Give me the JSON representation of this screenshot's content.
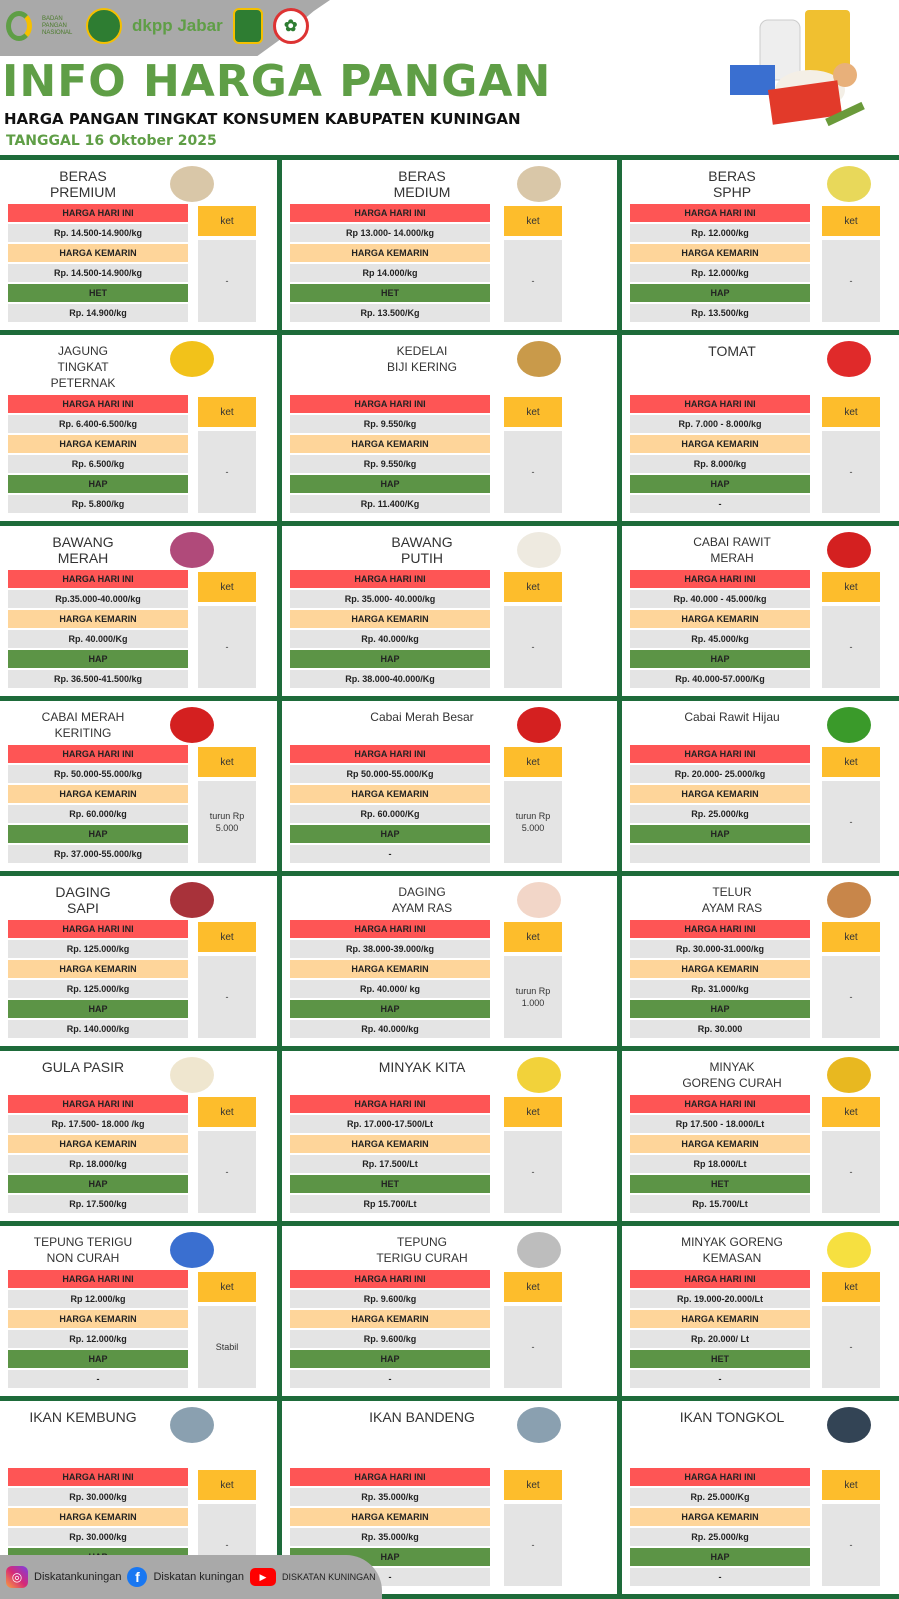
{
  "header": {
    "logos": [
      "BADAN PANGAN NASIONAL",
      "dkpp Jabar"
    ],
    "title": "INFO HARGA PANGAN",
    "subtitle": "HARGA PANGAN TINGKAT KONSUMEN  KABUPATEN KUNINGAN",
    "date": "TANGGAL 16 Oktober 2025"
  },
  "labels": {
    "today": "HARGA HARI INI",
    "yesterday": "HARGA KEMARIN",
    "ket": "ket"
  },
  "colors": {
    "today": "#fe5555",
    "yesterday": "#fed59a",
    "ref": "#5c9446",
    "ket": "#fdbd2c",
    "divider": "#1e6b3a",
    "title": "#5f9e46"
  },
  "cards": [
    {
      "name": "BERAS\nPREMIUM",
      "icon": "rice-sack-icon",
      "today": "Rp. 14.500-14.900/kg",
      "yesterday": "Rp. 14.500-14.900/kg",
      "ref_label": "HET",
      "ref": "Rp. 14.900/kg",
      "note": "-"
    },
    {
      "name": "BERAS\nMEDIUM",
      "icon": "rice-sack-icon",
      "today": "Rp 13.000- 14.000/kg",
      "yesterday": "Rp 14.000/kg",
      "ref_label": "HET",
      "ref": "Rp. 13.500/Kg",
      "note": "-"
    },
    {
      "name": "BERAS\nSPHP",
      "icon": "rice-bag-icon",
      "today": "Rp. 12.000/kg",
      "yesterday": "Rp. 12.000/kg",
      "ref_label": "HAP",
      "ref": "Rp. 13.500/kg",
      "note": "-"
    },
    {
      "name": "JAGUNG\nTINGKAT\nPETERNAK",
      "icon": "corn-icon",
      "today": "Rp. 6.400-6.500/kg",
      "yesterday": "Rp. 6.500/kg",
      "ref_label": "HAP",
      "ref": "Rp. 5.800/kg",
      "note": "-"
    },
    {
      "name": "KEDELAI\nBIJI KERING",
      "icon": "soybean-icon",
      "today": "Rp. 9.550/kg",
      "yesterday": "Rp. 9.550/kg",
      "ref_label": "HAP",
      "ref": "Rp. 11.400/Kg",
      "note": "-"
    },
    {
      "name": "TOMAT",
      "icon": "tomato-icon",
      "today": "Rp. 7.000 - 8.000/kg",
      "yesterday": "Rp. 8.000/kg",
      "ref_label": "HAP",
      "ref": "-",
      "note": "-"
    },
    {
      "name": "BAWANG\nMERAH",
      "icon": "shallot-icon",
      "today": "Rp.35.000-40.000/kg",
      "yesterday": "Rp. 40.000/Kg",
      "ref_label": "HAP",
      "ref": "Rp. 36.500-41.500/kg",
      "note": "-"
    },
    {
      "name": "BAWANG\nPUTIH",
      "icon": "garlic-icon",
      "today": "Rp. 35.000- 40.000/kg",
      "yesterday": "Rp. 40.000/kg",
      "ref_label": "HAP",
      "ref": "Rp. 38.000-40.000/Kg",
      "note": "-"
    },
    {
      "name": "CABAI RAWIT\nMERAH",
      "icon": "chili-icon",
      "today": "Rp. 40.000 - 45.000/kg",
      "yesterday": "Rp. 45.000/kg",
      "ref_label": "HAP",
      "ref": "Rp. 40.000-57.000/Kg",
      "note": "-"
    },
    {
      "name": "CABAI MERAH\nKERITING",
      "icon": "chili-icon",
      "today": "Rp.  50.000-55.000/kg",
      "yesterday": "Rp. 60.000/kg",
      "ref_label": "HAP",
      "ref": "Rp. 37.000-55.000/kg",
      "note": "turun Rp\n5.000"
    },
    {
      "name": "Cabai Merah Besar",
      "icon": "chili-icon",
      "today": "Rp  50.000-55.000/Kg",
      "yesterday": "Rp. 60.000/Kg",
      "ref_label": "HAP",
      "ref": "-",
      "note": "turun Rp\n5.000"
    },
    {
      "name": "Cabai Rawit Hijau",
      "icon": "green-chili-icon",
      "today": "Rp. 20.000- 25.000/kg",
      "yesterday": "Rp. 25.000/kg",
      "ref_label": "HAP",
      "note": "-"
    },
    {
      "name": "DAGING\nSAPI",
      "icon": "beef-icon",
      "today": "Rp. 125.000/kg",
      "yesterday": "Rp. 125.000/kg",
      "ref_label": "HAP",
      "ref": "Rp. 140.000/kg",
      "note": "-"
    },
    {
      "name": "DAGING\nAYAM RAS",
      "icon": "chicken-icon",
      "today": "Rp. 38.000-39.000/kg",
      "yesterday": "Rp. 40.000/ kg",
      "ref_label": "HAP",
      "ref": "Rp. 40.000/kg",
      "note": "turun Rp\n1.000"
    },
    {
      "name": "TELUR\nAYAM RAS",
      "icon": "egg-icon",
      "today": "Rp. 30.000-31.000/kg",
      "yesterday": "Rp. 31.000/kg",
      "ref_label": "HAP",
      "ref": "Rp. 30.000",
      "note": "-"
    },
    {
      "name": "GULA PASIR",
      "icon": "sugar-icon",
      "today": "Rp. 17.500- 18.000 /kg",
      "yesterday": "Rp. 18.000/kg",
      "ref_label": "HAP",
      "ref": "Rp. 17.500/kg",
      "note": "-"
    },
    {
      "name": "MINYAK KITA",
      "icon": "oil-bottle-icon",
      "today": "Rp. 17.000-17.500/Lt",
      "yesterday": "Rp. 17.500/Lt",
      "ref_label": "HET",
      "ref": "Rp 15.700/Lt",
      "note": "-"
    },
    {
      "name": "MINYAK\nGORENG CURAH",
      "icon": "oil-icon",
      "today": "Rp 17.500 - 18.000/Lt",
      "yesterday": "Rp 18.000/Lt",
      "ref_label": "HET",
      "ref": "Rp. 15.700/Lt",
      "note": "-"
    },
    {
      "name": "TEPUNG TERIGU\nNON CURAH",
      "icon": "flour-pack-icon",
      "today": "Rp 12.000/kg",
      "yesterday": "Rp. 12.000/kg",
      "ref_label": "HAP",
      "ref": "-",
      "note": "Stabil"
    },
    {
      "name": "TEPUNG\nTERIGU CURAH",
      "icon": "flour-sack-icon",
      "today": "Rp. 9.600/kg",
      "yesterday": "Rp. 9.600/kg",
      "ref_label": "HAP",
      "ref": "-",
      "note": "-"
    },
    {
      "name": "MINYAK GORENG\nKEMASAN",
      "icon": "oil-pouch-icon",
      "today": "Rp. 19.000-20.000/Lt",
      "yesterday": "Rp. 20.000/ Lt",
      "ref_label": "HET",
      "ref": "-",
      "note": "-"
    },
    {
      "name": "IKAN KEMBUNG",
      "icon": "fish-icon",
      "today": "Rp. 30.000/kg",
      "yesterday": "Rp. 30.000/kg",
      "ref_label": "HAP",
      "ref": "-",
      "note": "-"
    },
    {
      "name": "IKAN BANDENG",
      "icon": "fish-icon",
      "today": "Rp. 35.000/kg",
      "yesterday": "Rp. 35.000/kg",
      "ref_label": "HAP",
      "ref": "-",
      "note": "-"
    },
    {
      "name": "IKAN TONGKOL",
      "icon": "tuna-icon",
      "today": "Rp. 25.000/Kg",
      "yesterday": "Rp. 25.000/kg",
      "ref_label": "HAP",
      "ref": "-",
      "note": "-"
    }
  ],
  "footer": {
    "instagram": "Diskatankuningan",
    "facebook": "Diskatan kuningan",
    "youtube": "DISKATAN KUNINGAN"
  }
}
